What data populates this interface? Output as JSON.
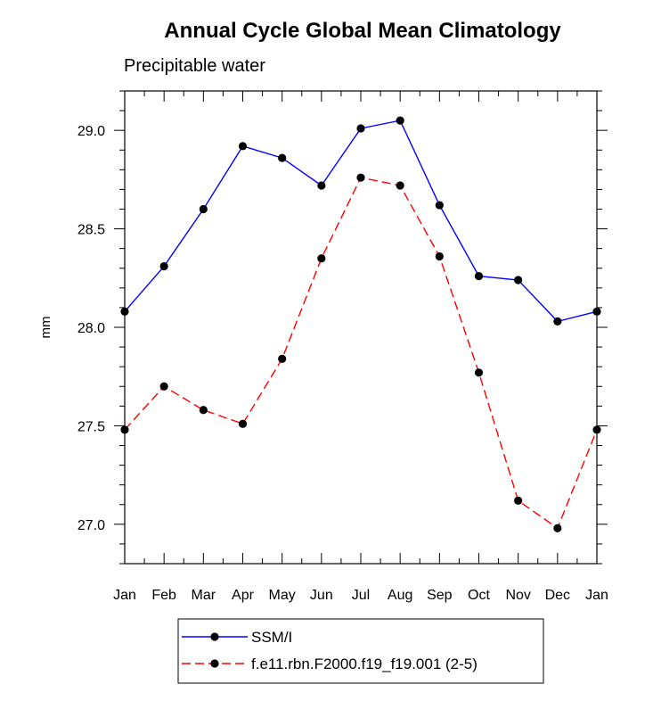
{
  "chart_data": {
    "type": "line",
    "title": "Annual Cycle Global Mean Climatology",
    "subtitle": "Precipitable water",
    "xlabel": "",
    "ylabel": "mm",
    "categories": [
      "Jan",
      "Feb",
      "Mar",
      "Apr",
      "May",
      "Jun",
      "Jul",
      "Aug",
      "Sep",
      "Oct",
      "Nov",
      "Dec",
      "Jan"
    ],
    "ylim": [
      26.8,
      29.2
    ],
    "yticks": [
      "27.0",
      "27.5",
      "28.0",
      "28.5",
      "29.0"
    ],
    "series": [
      {
        "name": "SSM/I",
        "color": "#0000ff",
        "dash": "solid",
        "values": [
          28.08,
          28.31,
          28.6,
          28.92,
          28.86,
          28.72,
          29.01,
          29.05,
          28.62,
          28.26,
          28.24,
          28.03,
          28.08
        ]
      },
      {
        "name": "f.e11.rbn.F2000.f19_f19.001 (2-5)",
        "color": "#ff0000",
        "dash": "dashed",
        "values": [
          27.48,
          27.7,
          27.58,
          27.51,
          27.84,
          28.35,
          28.76,
          28.72,
          28.36,
          27.77,
          27.12,
          26.98,
          27.48
        ]
      }
    ],
    "legend_position": "bottom-center"
  }
}
